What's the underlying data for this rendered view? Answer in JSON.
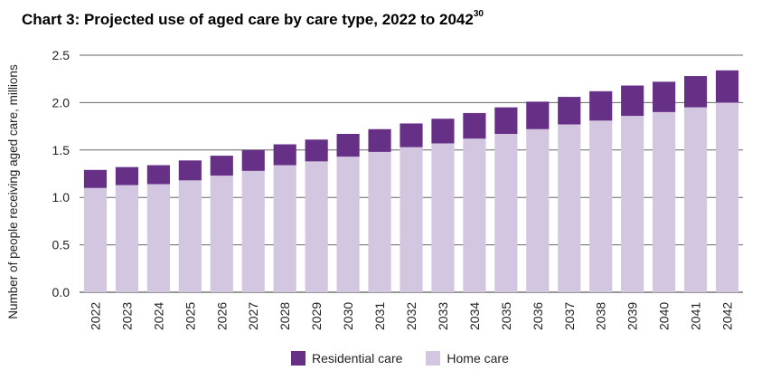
{
  "chart_data": {
    "type": "bar",
    "stacked": true,
    "title": "Chart 3: Projected use of aged care by care type, 2022 to 2042",
    "title_footnote": "30",
    "xlabel": "",
    "ylabel": "Number of people receiving aged care, millions",
    "ylim": [
      0,
      2.5
    ],
    "yticks": [
      "0.0",
      "0.5",
      "1.0",
      "1.5",
      "2.0",
      "2.5"
    ],
    "ytick_values": [
      0,
      0.5,
      1.0,
      1.5,
      2.0,
      2.5
    ],
    "grid": true,
    "legend_position": "bottom",
    "categories": [
      "2022",
      "2023",
      "2024",
      "2025",
      "2026",
      "2027",
      "2028",
      "2029",
      "2030",
      "2031",
      "2032",
      "2033",
      "2034",
      "2035",
      "2036",
      "2037",
      "2038",
      "2039",
      "2040",
      "2041",
      "2042"
    ],
    "series": [
      {
        "name": "Home care",
        "color": "#d3c6e1",
        "values": [
          1.1,
          1.13,
          1.14,
          1.18,
          1.23,
          1.28,
          1.34,
          1.38,
          1.43,
          1.48,
          1.53,
          1.57,
          1.62,
          1.67,
          1.72,
          1.77,
          1.81,
          1.86,
          1.9,
          1.95,
          2.0
        ]
      },
      {
        "name": "Residential care",
        "color": "#663087",
        "values": [
          0.19,
          0.19,
          0.2,
          0.21,
          0.21,
          0.22,
          0.22,
          0.23,
          0.24,
          0.24,
          0.25,
          0.26,
          0.27,
          0.28,
          0.29,
          0.29,
          0.31,
          0.32,
          0.32,
          0.33,
          0.34
        ]
      }
    ],
    "legend": [
      {
        "name": "Residential care",
        "color": "#663087"
      },
      {
        "name": "Home care",
        "color": "#d3c6e1"
      }
    ]
  }
}
